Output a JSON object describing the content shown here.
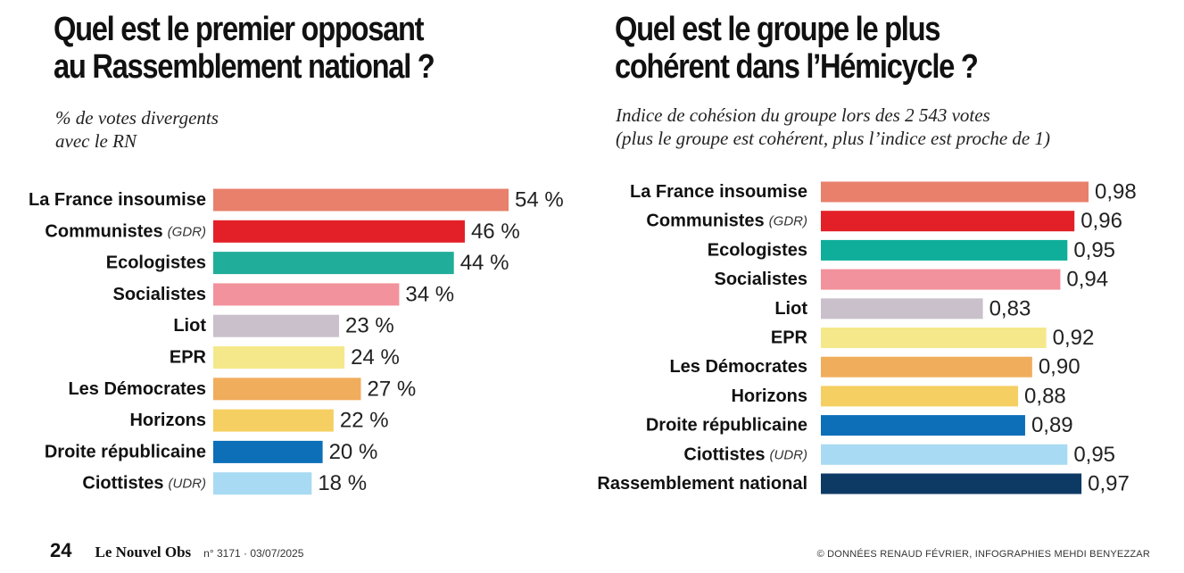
{
  "chart_data": [
    {
      "type": "bar",
      "orientation": "horizontal",
      "title": "Quel est le premier opposant au Rassemblement national ?",
      "title_lines": [
        "Quel est le premier opposant",
        "au Rassemblement national ?"
      ],
      "subtitle_lines": [
        "% de votes divergents",
        "avec le RN"
      ],
      "categories": [
        {
          "name": "La France insoumise",
          "note": ""
        },
        {
          "name": "Communistes",
          "note": "(GDR)"
        },
        {
          "name": "Ecologistes",
          "note": ""
        },
        {
          "name": "Socialistes",
          "note": ""
        },
        {
          "name": "Liot",
          "note": ""
        },
        {
          "name": "EPR",
          "note": ""
        },
        {
          "name": "Les Démocrates",
          "note": ""
        },
        {
          "name": "Horizons",
          "note": ""
        },
        {
          "name": "Droite républicaine",
          "note": ""
        },
        {
          "name": "Ciottistes",
          "note": "(UDR)"
        }
      ],
      "values": [
        54,
        46,
        44,
        34,
        23,
        24,
        27,
        22,
        20,
        18
      ],
      "value_labels": [
        "54 %",
        "46 %",
        "44 %",
        "34 %",
        "23 %",
        "24 %",
        "27 %",
        "22 %",
        "20 %",
        "18 %"
      ],
      "colors": [
        "#e8806c",
        "#e32027",
        "#20ae9b",
        "#f2929c",
        "#c9c0cb",
        "#f5e88a",
        "#f0ad5c",
        "#f5cf62",
        "#0c6fb8",
        "#a8dbf3"
      ],
      "xlim": [
        0,
        54
      ],
      "grid": false,
      "legend": "none"
    },
    {
      "type": "bar",
      "orientation": "horizontal",
      "title": "Quel est le groupe le plus cohérent dans l’Hémicycle ?",
      "title_lines": [
        "Quel est le groupe le plus",
        "cohérent dans l’Hémicycle ?"
      ],
      "subtitle_lines": [
        "Indice de cohésion du groupe lors des 2 543 votes",
        "(plus le groupe est cohérent, plus l’indice est proche de 1)"
      ],
      "categories": [
        {
          "name": "La France insoumise",
          "note": ""
        },
        {
          "name": "Communistes",
          "note": "(GDR)"
        },
        {
          "name": "Ecologistes",
          "note": ""
        },
        {
          "name": "Socialistes",
          "note": ""
        },
        {
          "name": "Liot",
          "note": ""
        },
        {
          "name": "EPR",
          "note": ""
        },
        {
          "name": "Les Démocrates",
          "note": ""
        },
        {
          "name": "Horizons",
          "note": ""
        },
        {
          "name": "Droite républicaine",
          "note": ""
        },
        {
          "name": "Ciottistes",
          "note": "(UDR)"
        },
        {
          "name": "Rassemblement national",
          "note": ""
        }
      ],
      "values": [
        0.98,
        0.96,
        0.95,
        0.94,
        0.83,
        0.92,
        0.9,
        0.88,
        0.89,
        0.95,
        0.97
      ],
      "value_labels": [
        "0,98",
        "0,96",
        "0,95",
        "0,94",
        "0,83",
        "0,92",
        "0,90",
        "0,88",
        "0,89",
        "0,95",
        "0,97"
      ],
      "colors": [
        "#e8806c",
        "#e32027",
        "#0fae9a",
        "#f2929c",
        "#c9c0cb",
        "#f5e88a",
        "#f0ad5c",
        "#f5cf62",
        "#0c6fb8",
        "#a8dbf3",
        "#0d3a64"
      ],
      "xlim": [
        0,
        0.98
      ],
      "grid": false,
      "legend": "none"
    }
  ],
  "footer": {
    "page_number": "24",
    "brand": "Le Nouvel Obs",
    "issue": "n° 3171 · 03/07/2025",
    "credits": "© DONNÉES RENAUD FÉVRIER, INFOGRAPHIES MEHDI BENYEZZAR"
  }
}
